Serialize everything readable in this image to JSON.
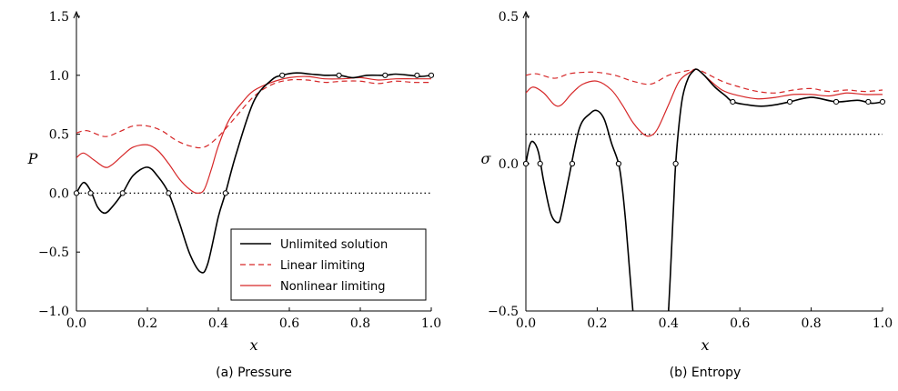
{
  "chart_data": [
    {
      "type": "line",
      "caption": "(a) Pressure",
      "xlabel": "x",
      "ylabel": "P",
      "xlim": [
        0,
        1
      ],
      "ylim": [
        -1,
        1.5
      ],
      "xticks": [
        "0.0",
        "0.2",
        "0.4",
        "0.6",
        "0.8",
        "1.0"
      ],
      "yticks": [
        "−1.0",
        "−0.5",
        "0.0",
        "0.5",
        "1.0",
        "1.5"
      ],
      "legend": {
        "position": "bottom-right",
        "entries": [
          "Unlimited solution",
          "Linear limiting",
          "Nonlinear limiting"
        ]
      },
      "reference_line": {
        "y": 0,
        "style": "dotted"
      },
      "series": [
        {
          "name": "Unlimited solution",
          "color": "#000000",
          "style": "solid",
          "x": [
            0,
            0.02,
            0.04,
            0.06,
            0.08,
            0.1,
            0.13,
            0.16,
            0.2,
            0.23,
            0.26,
            0.29,
            0.32,
            0.35,
            0.37,
            0.4,
            0.42,
            0.45,
            0.5,
            0.55,
            0.58,
            0.62,
            0.66,
            0.7,
            0.74,
            0.78,
            0.82,
            0.87,
            0.9,
            0.94,
            0.97,
            1.0
          ],
          "y": [
            0,
            0.09,
            0.02,
            -0.12,
            -0.17,
            -0.12,
            0.0,
            0.15,
            0.22,
            0.14,
            0.0,
            -0.25,
            -0.52,
            -0.67,
            -0.6,
            -0.2,
            0.0,
            0.33,
            0.78,
            0.96,
            1.0,
            1.02,
            1.01,
            1.0,
            1.0,
            0.98,
            1.0,
            1.0,
            1.01,
            1.0,
            0.99,
            1.0
          ]
        },
        {
          "name": "Linear limiting",
          "color": "#d62728",
          "style": "dashed",
          "x": [
            0,
            0.03,
            0.08,
            0.12,
            0.16,
            0.2,
            0.24,
            0.28,
            0.32,
            0.36,
            0.4,
            0.45,
            0.5,
            0.55,
            0.6,
            0.65,
            0.7,
            0.75,
            0.8,
            0.85,
            0.9,
            0.95,
            1.0
          ],
          "y": [
            0.51,
            0.53,
            0.48,
            0.52,
            0.57,
            0.57,
            0.53,
            0.45,
            0.4,
            0.39,
            0.48,
            0.65,
            0.82,
            0.92,
            0.96,
            0.96,
            0.94,
            0.95,
            0.95,
            0.93,
            0.95,
            0.94,
            0.94
          ]
        },
        {
          "name": "Nonlinear limiting",
          "color": "#d62728",
          "style": "solid",
          "x": [
            0,
            0.02,
            0.05,
            0.08,
            0.1,
            0.13,
            0.16,
            0.2,
            0.23,
            0.26,
            0.29,
            0.32,
            0.34,
            0.36,
            0.38,
            0.4,
            0.43,
            0.47,
            0.5,
            0.55,
            0.6,
            0.65,
            0.7,
            0.75,
            0.8,
            0.85,
            0.9,
            0.95,
            1.0
          ],
          "y": [
            0.3,
            0.34,
            0.28,
            0.22,
            0.24,
            0.32,
            0.39,
            0.41,
            0.36,
            0.25,
            0.12,
            0.03,
            0.0,
            0.03,
            0.2,
            0.4,
            0.62,
            0.78,
            0.87,
            0.94,
            0.98,
            0.99,
            0.97,
            0.97,
            0.98,
            0.96,
            0.97,
            0.97,
            0.97
          ]
        }
      ],
      "markers": [
        [
          0,
          0
        ],
        [
          0.04,
          0
        ],
        [
          0.13,
          0
        ],
        [
          0.26,
          0
        ],
        [
          0.42,
          0
        ],
        [
          0.58,
          1.0
        ],
        [
          0.74,
          1.0
        ],
        [
          0.87,
          1.0
        ],
        [
          0.96,
          1.0
        ],
        [
          1.0,
          1.0
        ]
      ]
    },
    {
      "type": "line",
      "caption": "(b) Entropy",
      "xlabel": "x",
      "ylabel": "σ",
      "xlim": [
        0,
        1
      ],
      "ylim": [
        -0.5,
        0.5
      ],
      "xticks": [
        "0.0",
        "0.2",
        "0.4",
        "0.6",
        "0.8",
        "1.0"
      ],
      "yticks": [
        "−0.5",
        "0.0",
        "0.5"
      ],
      "reference_line": {
        "y": 0.1,
        "style": "dotted"
      },
      "series": [
        {
          "name": "Unlimited solution",
          "color": "#000000",
          "style": "solid",
          "x": [
            0,
            0.01,
            0.02,
            0.035,
            0.05,
            0.07,
            0.09,
            0.1,
            0.12,
            0.15,
            0.18,
            0.2,
            0.22,
            0.24,
            0.26,
            0.27,
            0.28,
            0.29,
            0.3
          ],
          "y": [
            0,
            0.06,
            0.075,
            0.04,
            -0.06,
            -0.17,
            -0.2,
            -0.17,
            -0.05,
            0.12,
            0.17,
            0.18,
            0.15,
            0.07,
            0.0,
            -0.08,
            -0.2,
            -0.35,
            -0.5
          ]
        },
        {
          "name": "Unlimited solution",
          "color": "#000000",
          "style": "solid",
          "x": [
            0.4,
            0.405,
            0.41,
            0.415,
            0.42,
            0.43,
            0.44,
            0.455,
            0.47,
            0.48,
            0.5,
            0.53,
            0.56,
            0.58,
            0.62,
            0.66,
            0.7,
            0.74,
            0.8,
            0.87,
            0.93,
            0.97,
            1.0
          ],
          "y": [
            -0.5,
            -0.38,
            -0.25,
            -0.12,
            0.0,
            0.14,
            0.23,
            0.29,
            0.315,
            0.32,
            0.3,
            0.26,
            0.23,
            0.21,
            0.2,
            0.195,
            0.2,
            0.21,
            0.225,
            0.21,
            0.215,
            0.205,
            0.21
          ]
        },
        {
          "name": "Linear limiting",
          "color": "#d62728",
          "style": "dashed",
          "x": [
            0,
            0.03,
            0.08,
            0.12,
            0.16,
            0.2,
            0.25,
            0.3,
            0.35,
            0.4,
            0.45,
            0.48,
            0.5,
            0.55,
            0.6,
            0.65,
            0.7,
            0.75,
            0.8,
            0.85,
            0.9,
            0.95,
            1.0
          ],
          "y": [
            0.3,
            0.305,
            0.29,
            0.305,
            0.31,
            0.31,
            0.3,
            0.28,
            0.27,
            0.3,
            0.315,
            0.32,
            0.31,
            0.28,
            0.26,
            0.245,
            0.24,
            0.25,
            0.255,
            0.245,
            0.25,
            0.245,
            0.25
          ]
        },
        {
          "name": "Nonlinear limiting",
          "color": "#d62728",
          "style": "solid",
          "x": [
            0,
            0.02,
            0.05,
            0.08,
            0.1,
            0.13,
            0.16,
            0.2,
            0.24,
            0.27,
            0.3,
            0.33,
            0.35,
            0.37,
            0.4,
            0.43,
            0.46,
            0.48,
            0.5,
            0.55,
            0.6,
            0.65,
            0.7,
            0.75,
            0.8,
            0.85,
            0.9,
            0.95,
            1.0
          ],
          "y": [
            0.24,
            0.26,
            0.24,
            0.2,
            0.2,
            0.24,
            0.27,
            0.28,
            0.25,
            0.2,
            0.14,
            0.1,
            0.095,
            0.12,
            0.2,
            0.28,
            0.31,
            0.32,
            0.3,
            0.25,
            0.23,
            0.22,
            0.225,
            0.235,
            0.235,
            0.23,
            0.24,
            0.235,
            0.235
          ]
        }
      ],
      "markers": [
        [
          0,
          0
        ],
        [
          0.04,
          0
        ],
        [
          0.13,
          0
        ],
        [
          0.26,
          0
        ],
        [
          0.42,
          0
        ],
        [
          0.58,
          0.21
        ],
        [
          0.74,
          0.21
        ],
        [
          0.87,
          0.21
        ],
        [
          0.96,
          0.21
        ],
        [
          1.0,
          0.21
        ]
      ]
    }
  ]
}
